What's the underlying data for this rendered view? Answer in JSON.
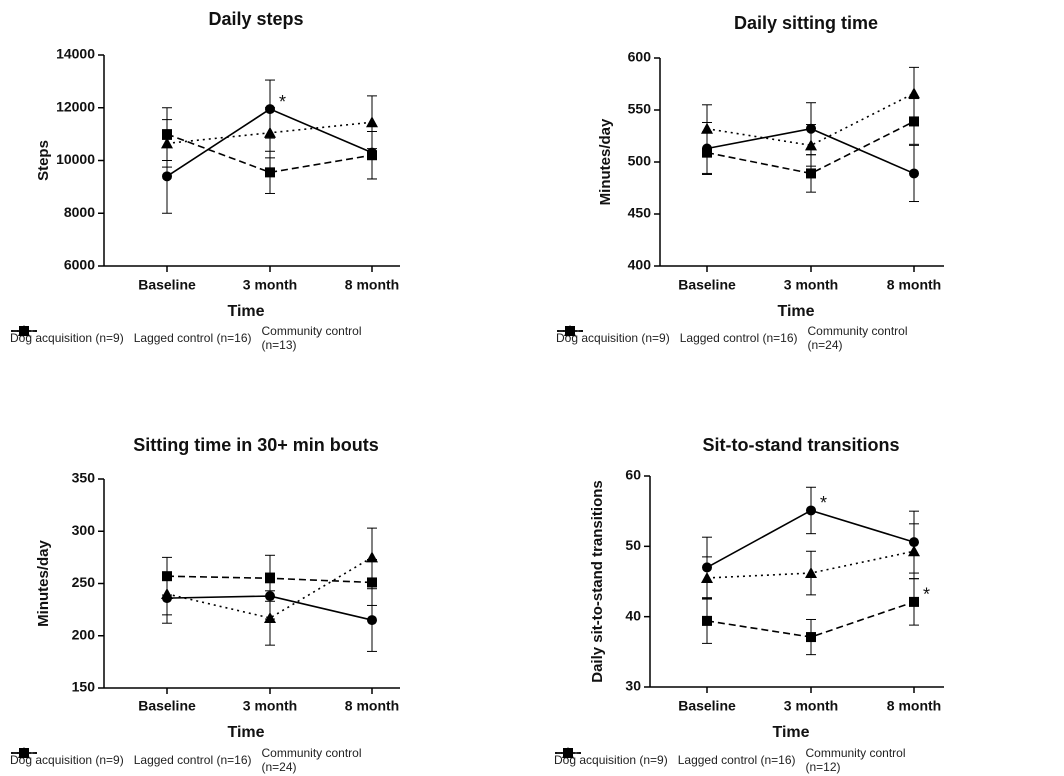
{
  "chart_data": [
    {
      "type": "line",
      "title": "Daily steps",
      "xlabel": "Time",
      "ylabel": "Steps",
      "categories": [
        "Baseline",
        "3 month",
        "8 month"
      ],
      "ylim": [
        6000,
        14000
      ],
      "yticks": [
        6000,
        8000,
        10000,
        12000,
        14000
      ],
      "series": [
        {
          "name": "Dog acquisition (n=9)",
          "color": "#000000",
          "dash": "solid",
          "marker": "circle",
          "values": [
            9400,
            11950,
            10300
          ],
          "errors": [
            1400,
            1100,
            1000
          ]
        },
        {
          "name": "Lagged control (n=16)",
          "color": "#000000",
          "dash": "dashed",
          "marker": "square",
          "values": [
            11000,
            9550,
            10200
          ],
          "errors": [
            1000,
            800,
            900
          ]
        },
        {
          "name": "Community control (n=13)",
          "color": "#000000",
          "dash": "dotted",
          "marker": "triangle",
          "values": [
            10650,
            11050,
            11450
          ],
          "errors": [
            900,
            950,
            1000
          ]
        }
      ],
      "annotations": [
        {
          "text": "*",
          "series": 0,
          "index": 1
        }
      ]
    },
    {
      "type": "line",
      "title": "Daily sitting time",
      "xlabel": "Time",
      "ylabel": "Minutes/day",
      "categories": [
        "Baseline",
        "3 month",
        "8 month"
      ],
      "ylim": [
        400,
        600
      ],
      "yticks": [
        400,
        450,
        500,
        550,
        600
      ],
      "series": [
        {
          "name": "Dog acquisition (n=9)",
          "color": "#000000",
          "dash": "solid",
          "marker": "circle",
          "values": [
            513,
            532,
            489
          ],
          "errors": [
            25,
            25,
            27
          ]
        },
        {
          "name": "Lagged control (n=16)",
          "color": "#000000",
          "dash": "dashed",
          "marker": "square",
          "values": [
            509,
            489,
            539
          ],
          "errors": [
            20,
            18,
            22
          ]
        },
        {
          "name": "Community control (n=24)",
          "color": "#000000",
          "dash": "dotted",
          "marker": "triangle",
          "values": [
            532,
            516,
            566
          ],
          "errors": [
            23,
            20,
            25
          ]
        }
      ],
      "annotations": []
    },
    {
      "type": "line",
      "title": "Sitting time in 30+ min bouts",
      "xlabel": "Time",
      "ylabel": "Minutes/day",
      "categories": [
        "Baseline",
        "3 month",
        "8 month"
      ],
      "ylim": [
        150,
        350
      ],
      "yticks": [
        150,
        200,
        250,
        300,
        350
      ],
      "series": [
        {
          "name": "Dog acquisition (n=9)",
          "color": "#000000",
          "dash": "solid",
          "marker": "circle",
          "values": [
            236,
            238,
            215
          ],
          "errors": [
            24,
            22,
            30
          ]
        },
        {
          "name": "Lagged control (n=16)",
          "color": "#000000",
          "dash": "dashed",
          "marker": "square",
          "values": [
            257,
            255,
            251
          ],
          "errors": [
            18,
            22,
            22
          ]
        },
        {
          "name": "Community control (n=24)",
          "color": "#000000",
          "dash": "dotted",
          "marker": "triangle",
          "values": [
            240,
            217,
            275
          ],
          "errors": [
            20,
            26,
            28
          ]
        }
      ],
      "annotations": []
    },
    {
      "type": "line",
      "title": "Sit-to-stand transitions",
      "xlabel": "Time",
      "ylabel": "Daily sit-to-stand transitions",
      "categories": [
        "Baseline",
        "3 month",
        "8 month"
      ],
      "ylim": [
        30,
        60
      ],
      "yticks": [
        30,
        40,
        50,
        60
      ],
      "series": [
        {
          "name": "Dog acquisition (n=9)",
          "color": "#000000",
          "dash": "solid",
          "marker": "circle",
          "values": [
            47,
            55.1,
            50.6
          ],
          "errors": [
            4.3,
            3.3,
            4.4
          ]
        },
        {
          "name": "Lagged control (n=16)",
          "color": "#000000",
          "dash": "dashed",
          "marker": "square",
          "values": [
            39.4,
            37.1,
            42.1
          ],
          "errors": [
            3.2,
            2.5,
            3.3
          ]
        },
        {
          "name": "Community control (n=12)",
          "color": "#000000",
          "dash": "dotted",
          "marker": "triangle",
          "values": [
            45.5,
            46.2,
            49.3
          ],
          "errors": [
            3.0,
            3.1,
            3.9
          ]
        }
      ],
      "annotations": [
        {
          "text": "*",
          "series": 0,
          "index": 1
        },
        {
          "text": "*",
          "series": 1,
          "index": 2
        }
      ]
    }
  ]
}
